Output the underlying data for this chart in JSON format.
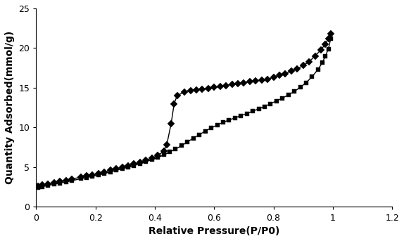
{
  "diamond_x": [
    0.005,
    0.02,
    0.04,
    0.06,
    0.08,
    0.1,
    0.12,
    0.15,
    0.17,
    0.19,
    0.21,
    0.23,
    0.25,
    0.27,
    0.29,
    0.31,
    0.33,
    0.35,
    0.37,
    0.39,
    0.41,
    0.43,
    0.44,
    0.455,
    0.465,
    0.475,
    0.5,
    0.52,
    0.54,
    0.56,
    0.58,
    0.6,
    0.62,
    0.64,
    0.66,
    0.68,
    0.7,
    0.72,
    0.74,
    0.76,
    0.78,
    0.8,
    0.82,
    0.84,
    0.86,
    0.88,
    0.9,
    0.92,
    0.94,
    0.96,
    0.975,
    0.985,
    0.993
  ],
  "diamond_y": [
    2.6,
    2.75,
    2.9,
    3.05,
    3.2,
    3.35,
    3.5,
    3.75,
    3.9,
    4.05,
    4.2,
    4.4,
    4.6,
    4.8,
    5.0,
    5.2,
    5.4,
    5.6,
    5.85,
    6.15,
    6.5,
    7.0,
    7.8,
    10.5,
    13.0,
    14.0,
    14.5,
    14.65,
    14.75,
    14.85,
    14.95,
    15.05,
    15.15,
    15.3,
    15.45,
    15.55,
    15.65,
    15.75,
    15.85,
    15.95,
    16.1,
    16.3,
    16.55,
    16.8,
    17.1,
    17.4,
    17.8,
    18.3,
    19.0,
    19.8,
    20.5,
    21.2,
    21.8
  ],
  "square_x": [
    0.005,
    0.02,
    0.04,
    0.06,
    0.08,
    0.1,
    0.12,
    0.15,
    0.17,
    0.19,
    0.21,
    0.23,
    0.25,
    0.27,
    0.29,
    0.31,
    0.33,
    0.35,
    0.37,
    0.39,
    0.41,
    0.43,
    0.45,
    0.47,
    0.49,
    0.51,
    0.53,
    0.55,
    0.57,
    0.59,
    0.61,
    0.63,
    0.65,
    0.67,
    0.69,
    0.71,
    0.73,
    0.75,
    0.77,
    0.79,
    0.81,
    0.83,
    0.85,
    0.87,
    0.89,
    0.91,
    0.93,
    0.95,
    0.965,
    0.975,
    0.985,
    0.993
  ],
  "square_y": [
    2.4,
    2.55,
    2.7,
    2.85,
    3.0,
    3.15,
    3.3,
    3.55,
    3.7,
    3.85,
    4.0,
    4.2,
    4.4,
    4.6,
    4.8,
    5.0,
    5.2,
    5.45,
    5.7,
    5.95,
    6.2,
    6.55,
    6.9,
    7.3,
    7.7,
    8.2,
    8.65,
    9.1,
    9.55,
    9.95,
    10.3,
    10.65,
    10.95,
    11.2,
    11.5,
    11.75,
    12.05,
    12.35,
    12.65,
    13.0,
    13.35,
    13.7,
    14.1,
    14.55,
    15.05,
    15.65,
    16.4,
    17.3,
    18.2,
    19.0,
    19.9,
    21.2
  ],
  "xlabel": "Relative Pressure(P/P0)",
  "ylabel": "Quantity Adsorbed(mmol/g)",
  "xlim": [
    0,
    1.2
  ],
  "ylim": [
    0,
    25
  ],
  "xticks": [
    0,
    0.2,
    0.4,
    0.6,
    0.8,
    1.0,
    1.2
  ],
  "yticks": [
    0,
    5,
    10,
    15,
    20,
    25
  ],
  "line_color": "#000000",
  "marker_color": "#000000",
  "background_color": "#ffffff",
  "xlabel_fontsize": 10,
  "ylabel_fontsize": 10,
  "tick_fontsize": 9,
  "linewidth": 1.0,
  "marker_size": 5
}
